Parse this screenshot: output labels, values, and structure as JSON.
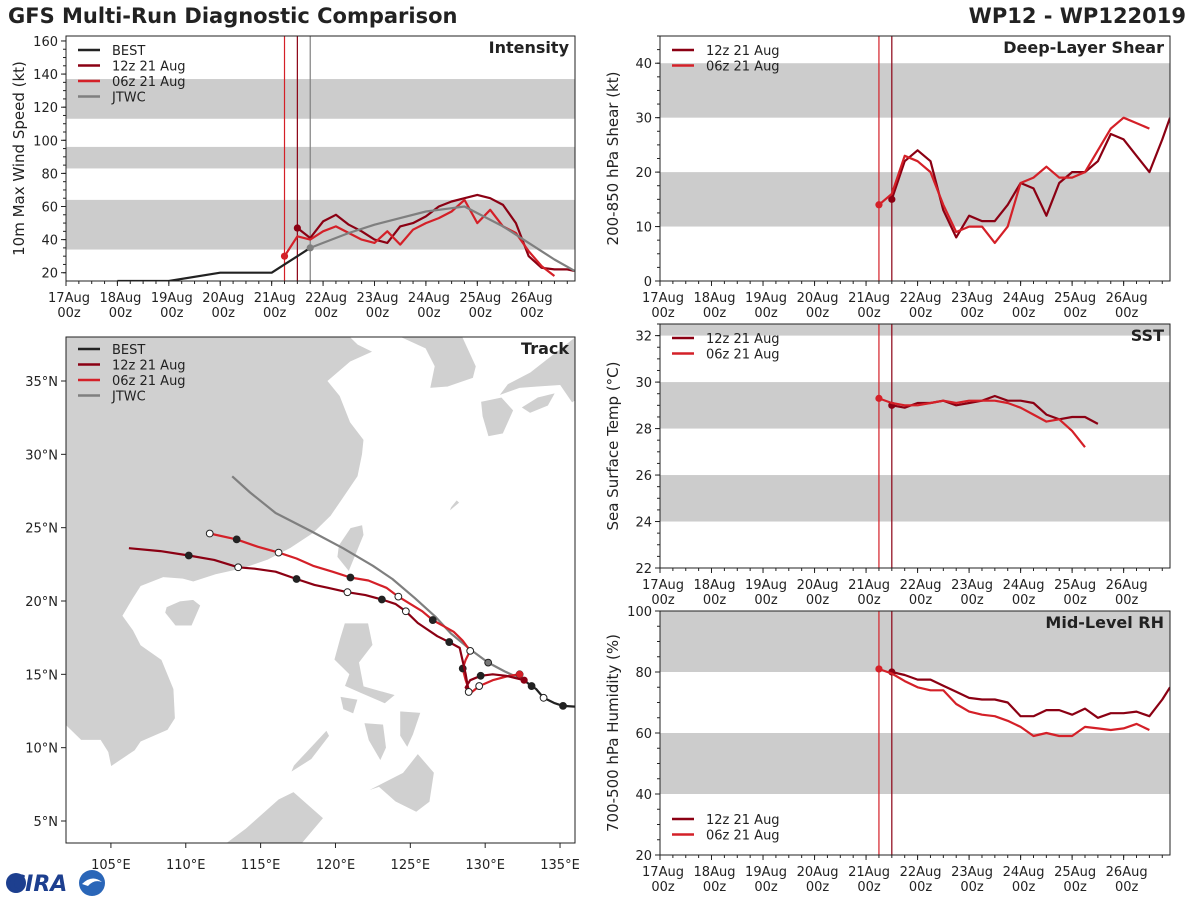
{
  "header": {
    "title": "GFS Multi-Run Diagnostic Comparison",
    "storm": "WP12 - WP122019"
  },
  "colors": {
    "best": "#222222",
    "run12z": "#8b0013",
    "run06z": "#d42028",
    "jtwc": "#7f7f7f",
    "band": "#cccccc",
    "land": "#d0d0d0",
    "sea": "#ffffff"
  },
  "time_ticks": [
    "17Aug\n00z",
    "18Aug\n00z",
    "19Aug\n00z",
    "20Aug\n00z",
    "21Aug\n00z",
    "22Aug\n00z",
    "23Aug\n00z",
    "24Aug\n00z",
    "25Aug\n00z",
    "26Aug\n00z"
  ],
  "logo_text": "CIRA",
  "chart_data": [
    {
      "id": "intensity",
      "type": "line",
      "title": "Intensity",
      "ylabel": "10m Max Wind Speed (kt)",
      "xlim": [
        0,
        9.9
      ],
      "ylim": [
        15,
        163
      ],
      "yticks": [
        20,
        40,
        60,
        80,
        100,
        120,
        140,
        160
      ],
      "bands": [
        [
          34,
          64
        ],
        [
          83,
          96
        ],
        [
          113,
          137
        ]
      ],
      "vlines": [
        {
          "x": 4.25,
          "series": "06z"
        },
        {
          "x": 4.5,
          "series": "12z"
        },
        {
          "x": 4.75,
          "series": "JTWC"
        }
      ],
      "series": [
        {
          "name": "BEST",
          "key": "best",
          "x": [
            1,
            2,
            3,
            4,
            4.25,
            4.5,
            4.75
          ],
          "y": [
            15,
            15,
            20,
            20,
            25,
            30,
            35
          ],
          "start_dot": false
        },
        {
          "name": "12z 21 Aug",
          "key": "run12z",
          "x": [
            4.5,
            4.75,
            5,
            5.25,
            5.5,
            5.75,
            6,
            6.25,
            6.5,
            6.75,
            7,
            7.25,
            7.5,
            7.75,
            8,
            8.25,
            8.5,
            8.75,
            9,
            9.25,
            9.5,
            9.75,
            9.9
          ],
          "y": [
            47,
            41,
            51,
            55,
            49,
            45,
            40,
            38,
            48,
            50,
            54,
            60,
            63,
            65,
            67,
            65,
            61,
            50,
            30,
            23,
            22,
            22,
            21
          ],
          "start_dot": true
        },
        {
          "name": "06z 21 Aug",
          "key": "run06z",
          "x": [
            4.25,
            4.5,
            4.75,
            5,
            5.25,
            5.5,
            5.75,
            6,
            6.25,
            6.5,
            6.75,
            7,
            7.25,
            7.5,
            7.75,
            8,
            8.25,
            8.5,
            8.75,
            9,
            9.25,
            9.5
          ],
          "y": [
            30,
            42,
            40,
            45,
            48,
            44,
            40,
            38,
            45,
            37,
            46,
            50,
            53,
            57,
            64,
            50,
            58,
            48,
            44,
            33,
            24,
            18
          ],
          "start_dot": true
        },
        {
          "name": "JTWC",
          "key": "jtwc",
          "x": [
            4.75,
            5,
            5.5,
            6,
            6.5,
            7,
            7.5,
            7.75,
            8,
            8.5,
            9,
            9.5,
            9.9
          ],
          "y": [
            35,
            38,
            44,
            49,
            53,
            57,
            59,
            60,
            56,
            48,
            38,
            28,
            21
          ],
          "start_dot": true
        }
      ]
    },
    {
      "id": "shear",
      "type": "line",
      "title": "Deep-Layer Shear",
      "ylabel": "200-850 hPa Shear (kt)",
      "xlim": [
        0,
        9.9
      ],
      "ylim": [
        0,
        45
      ],
      "yticks": [
        0,
        10,
        20,
        30,
        40
      ],
      "bands": [
        [
          10,
          20
        ],
        [
          30,
          40
        ]
      ],
      "vlines": [
        {
          "x": 4.25,
          "series": "06z"
        },
        {
          "x": 4.5,
          "series": "12z"
        }
      ],
      "series": [
        {
          "name": "12z 21 Aug",
          "key": "run12z",
          "x": [
            4.5,
            4.75,
            5,
            5.25,
            5.5,
            5.75,
            6,
            6.25,
            6.5,
            6.75,
            7,
            7.25,
            7.5,
            7.75,
            8,
            8.25,
            8.5,
            8.75,
            9,
            9.25,
            9.5,
            9.75,
            9.9
          ],
          "y": [
            15,
            22,
            24,
            22,
            13,
            8,
            12,
            11,
            11,
            14,
            18,
            17,
            12,
            18,
            20,
            20,
            22,
            27,
            26,
            23,
            20,
            26,
            30
          ],
          "start_dot": true
        },
        {
          "name": "06z 21 Aug",
          "key": "run06z",
          "x": [
            4.25,
            4.5,
            4.75,
            5,
            5.25,
            5.5,
            5.75,
            6,
            6.25,
            6.5,
            6.75,
            7,
            7.25,
            7.5,
            7.75,
            8,
            8.25,
            8.5,
            8.75,
            9,
            9.25,
            9.5
          ],
          "y": [
            14,
            16,
            23,
            22,
            20,
            14,
            9,
            10,
            10,
            7,
            10,
            18,
            19,
            21,
            19,
            19,
            20,
            24,
            28,
            30,
            29,
            28
          ],
          "start_dot": true
        }
      ]
    },
    {
      "id": "sst",
      "type": "line",
      "title": "SST",
      "ylabel": "Sea Surface Temp (°C)",
      "xlim": [
        0,
        9.9
      ],
      "ylim": [
        22,
        32.5
      ],
      "yticks": [
        22,
        24,
        26,
        28,
        30,
        32
      ],
      "bands": [
        [
          24,
          26
        ],
        [
          28,
          30
        ],
        [
          32,
          34
        ]
      ],
      "vlines": [
        {
          "x": 4.25,
          "series": "06z"
        },
        {
          "x": 4.5,
          "series": "12z"
        }
      ],
      "series": [
        {
          "name": "12z 21 Aug",
          "key": "run12z",
          "x": [
            4.5,
            4.75,
            5,
            5.25,
            5.5,
            5.75,
            6,
            6.25,
            6.5,
            6.75,
            7,
            7.25,
            7.5,
            7.75,
            8,
            8.25,
            8.5
          ],
          "y": [
            29.0,
            28.9,
            29.1,
            29.1,
            29.2,
            29.0,
            29.1,
            29.2,
            29.4,
            29.2,
            29.2,
            29.1,
            28.6,
            28.4,
            28.5,
            28.5,
            28.2
          ],
          "start_dot": true
        },
        {
          "name": "06z 21 Aug",
          "key": "run06z",
          "x": [
            4.25,
            4.5,
            4.75,
            5,
            5.25,
            5.5,
            5.75,
            6,
            6.25,
            6.5,
            6.75,
            7,
            7.25,
            7.5,
            7.75,
            8,
            8.25
          ],
          "y": [
            29.3,
            29.1,
            29.0,
            29.0,
            29.1,
            29.2,
            29.1,
            29.2,
            29.2,
            29.2,
            29.1,
            28.9,
            28.6,
            28.3,
            28.4,
            27.9,
            27.2
          ],
          "start_dot": true
        }
      ]
    },
    {
      "id": "rh",
      "type": "line",
      "title": "Mid-Level RH",
      "ylabel": "700-500 hPa Humidity (%)",
      "xlim": [
        0,
        9.9
      ],
      "ylim": [
        20,
        100
      ],
      "yticks": [
        20,
        40,
        60,
        80,
        100
      ],
      "bands": [
        [
          40,
          60
        ],
        [
          80,
          100
        ]
      ],
      "vlines": [
        {
          "x": 4.25,
          "series": "06z"
        },
        {
          "x": 4.5,
          "series": "12z"
        }
      ],
      "series": [
        {
          "name": "12z 21 Aug",
          "key": "run12z",
          "x": [
            4.5,
            4.75,
            5,
            5.25,
            5.5,
            5.75,
            6,
            6.25,
            6.5,
            6.75,
            7,
            7.25,
            7.5,
            7.75,
            8,
            8.25,
            8.5,
            8.75,
            9,
            9.25,
            9.5,
            9.75,
            9.9
          ],
          "y": [
            80,
            79,
            77.5,
            77.5,
            75.5,
            73.5,
            71.5,
            71,
            71,
            70,
            65.5,
            65.5,
            67.5,
            67.5,
            66,
            68,
            65,
            66.5,
            66.5,
            67,
            65.5,
            71,
            75
          ],
          "start_dot": true
        },
        {
          "name": "06z 21 Aug",
          "key": "run06z",
          "x": [
            4.25,
            4.5,
            4.75,
            5,
            5.25,
            5.5,
            5.75,
            6,
            6.25,
            6.5,
            6.75,
            7,
            7.25,
            7.5,
            7.75,
            8,
            8.25,
            8.5,
            8.75,
            9,
            9.25,
            9.5
          ],
          "y": [
            81,
            79.5,
            77,
            75,
            74,
            74,
            69.5,
            67,
            66,
            65.5,
            64,
            62,
            59,
            60,
            59,
            59,
            62,
            61.5,
            61,
            61.5,
            63,
            61
          ],
          "start_dot": true
        }
      ]
    },
    {
      "id": "track",
      "type": "scatter",
      "title": "Track",
      "lon_range": [
        102,
        136
      ],
      "lat_range": [
        3.5,
        38
      ],
      "xticks": [
        "105°E",
        "110°E",
        "115°E",
        "120°E",
        "125°E",
        "130°E",
        "135°E"
      ],
      "yticks": [
        "5°N",
        "10°N",
        "15°N",
        "20°N",
        "25°N",
        "30°N",
        "35°N"
      ],
      "series": [
        {
          "name": "BEST",
          "key": "best",
          "lon": [
            136,
            135.2,
            134.6,
            133.9,
            133.4,
            133.1,
            132.6
          ],
          "lat": [
            12.8,
            12.85,
            13.05,
            13.4,
            14.0,
            14.2,
            14.6
          ],
          "markers": [
            1,
            3,
            5
          ]
        },
        {
          "name": "12z 21 Aug",
          "key": "run12z",
          "lon": [
            132.6,
            131.4,
            130.5,
            129.7,
            129.0,
            128.7,
            128.9,
            128.7,
            128.3,
            127.6,
            126.8,
            125.5,
            124.7,
            124.0,
            123.1,
            122.0,
            120.8,
            119.5,
            118.6,
            117.4,
            116.0,
            114.6,
            113.5,
            111.9,
            110.2,
            108.3,
            106.2
          ],
          "lat": [
            14.6,
            14.9,
            15.0,
            14.9,
            14.6,
            14.1,
            13.8,
            15.0,
            16.8,
            17.2,
            17.6,
            18.5,
            19.3,
            19.8,
            20.1,
            20.4,
            20.6,
            20.9,
            21.1,
            21.5,
            22.0,
            22.2,
            22.3,
            22.8,
            23.1,
            23.4,
            23.6
          ],
          "markers": [
            3,
            6,
            9,
            12,
            14,
            16,
            19,
            22,
            24
          ]
        },
        {
          "name": "06z 21 Aug",
          "key": "run06z",
          "lon": [
            132.3,
            131.6,
            130.5,
            129.6,
            129.0,
            128.7,
            128.5,
            128.7,
            129.0,
            128.5,
            127.9,
            127.2,
            126.5,
            125.8,
            125.0,
            124.2,
            123.4,
            122.2,
            121.0,
            119.8,
            118.5,
            117.4,
            116.2,
            114.8,
            113.4,
            111.6
          ],
          "lat": [
            15.0,
            14.9,
            14.6,
            14.2,
            13.7,
            14.6,
            15.4,
            16.0,
            16.6,
            17.3,
            17.9,
            18.3,
            18.7,
            19.3,
            19.8,
            20.3,
            20.9,
            21.4,
            21.6,
            22.0,
            22.4,
            22.9,
            23.3,
            23.7,
            24.2,
            24.6
          ],
          "markers": [
            0,
            3,
            6,
            8,
            12,
            15,
            18,
            22,
            24,
            25
          ]
        },
        {
          "name": "JTWC",
          "key": "jtwc",
          "lon": [
            132.6,
            131.3,
            130.2,
            129.0,
            127.7,
            126.7,
            125.3,
            123.8,
            122.5,
            120.5,
            118.3,
            116.0,
            114.3,
            113.1
          ],
          "lat": [
            14.6,
            15.2,
            15.8,
            16.7,
            17.8,
            18.9,
            20.2,
            21.5,
            22.4,
            23.6,
            24.8,
            26.0,
            27.4,
            28.5
          ],
          "markers": [
            2
          ]
        }
      ]
    }
  ]
}
